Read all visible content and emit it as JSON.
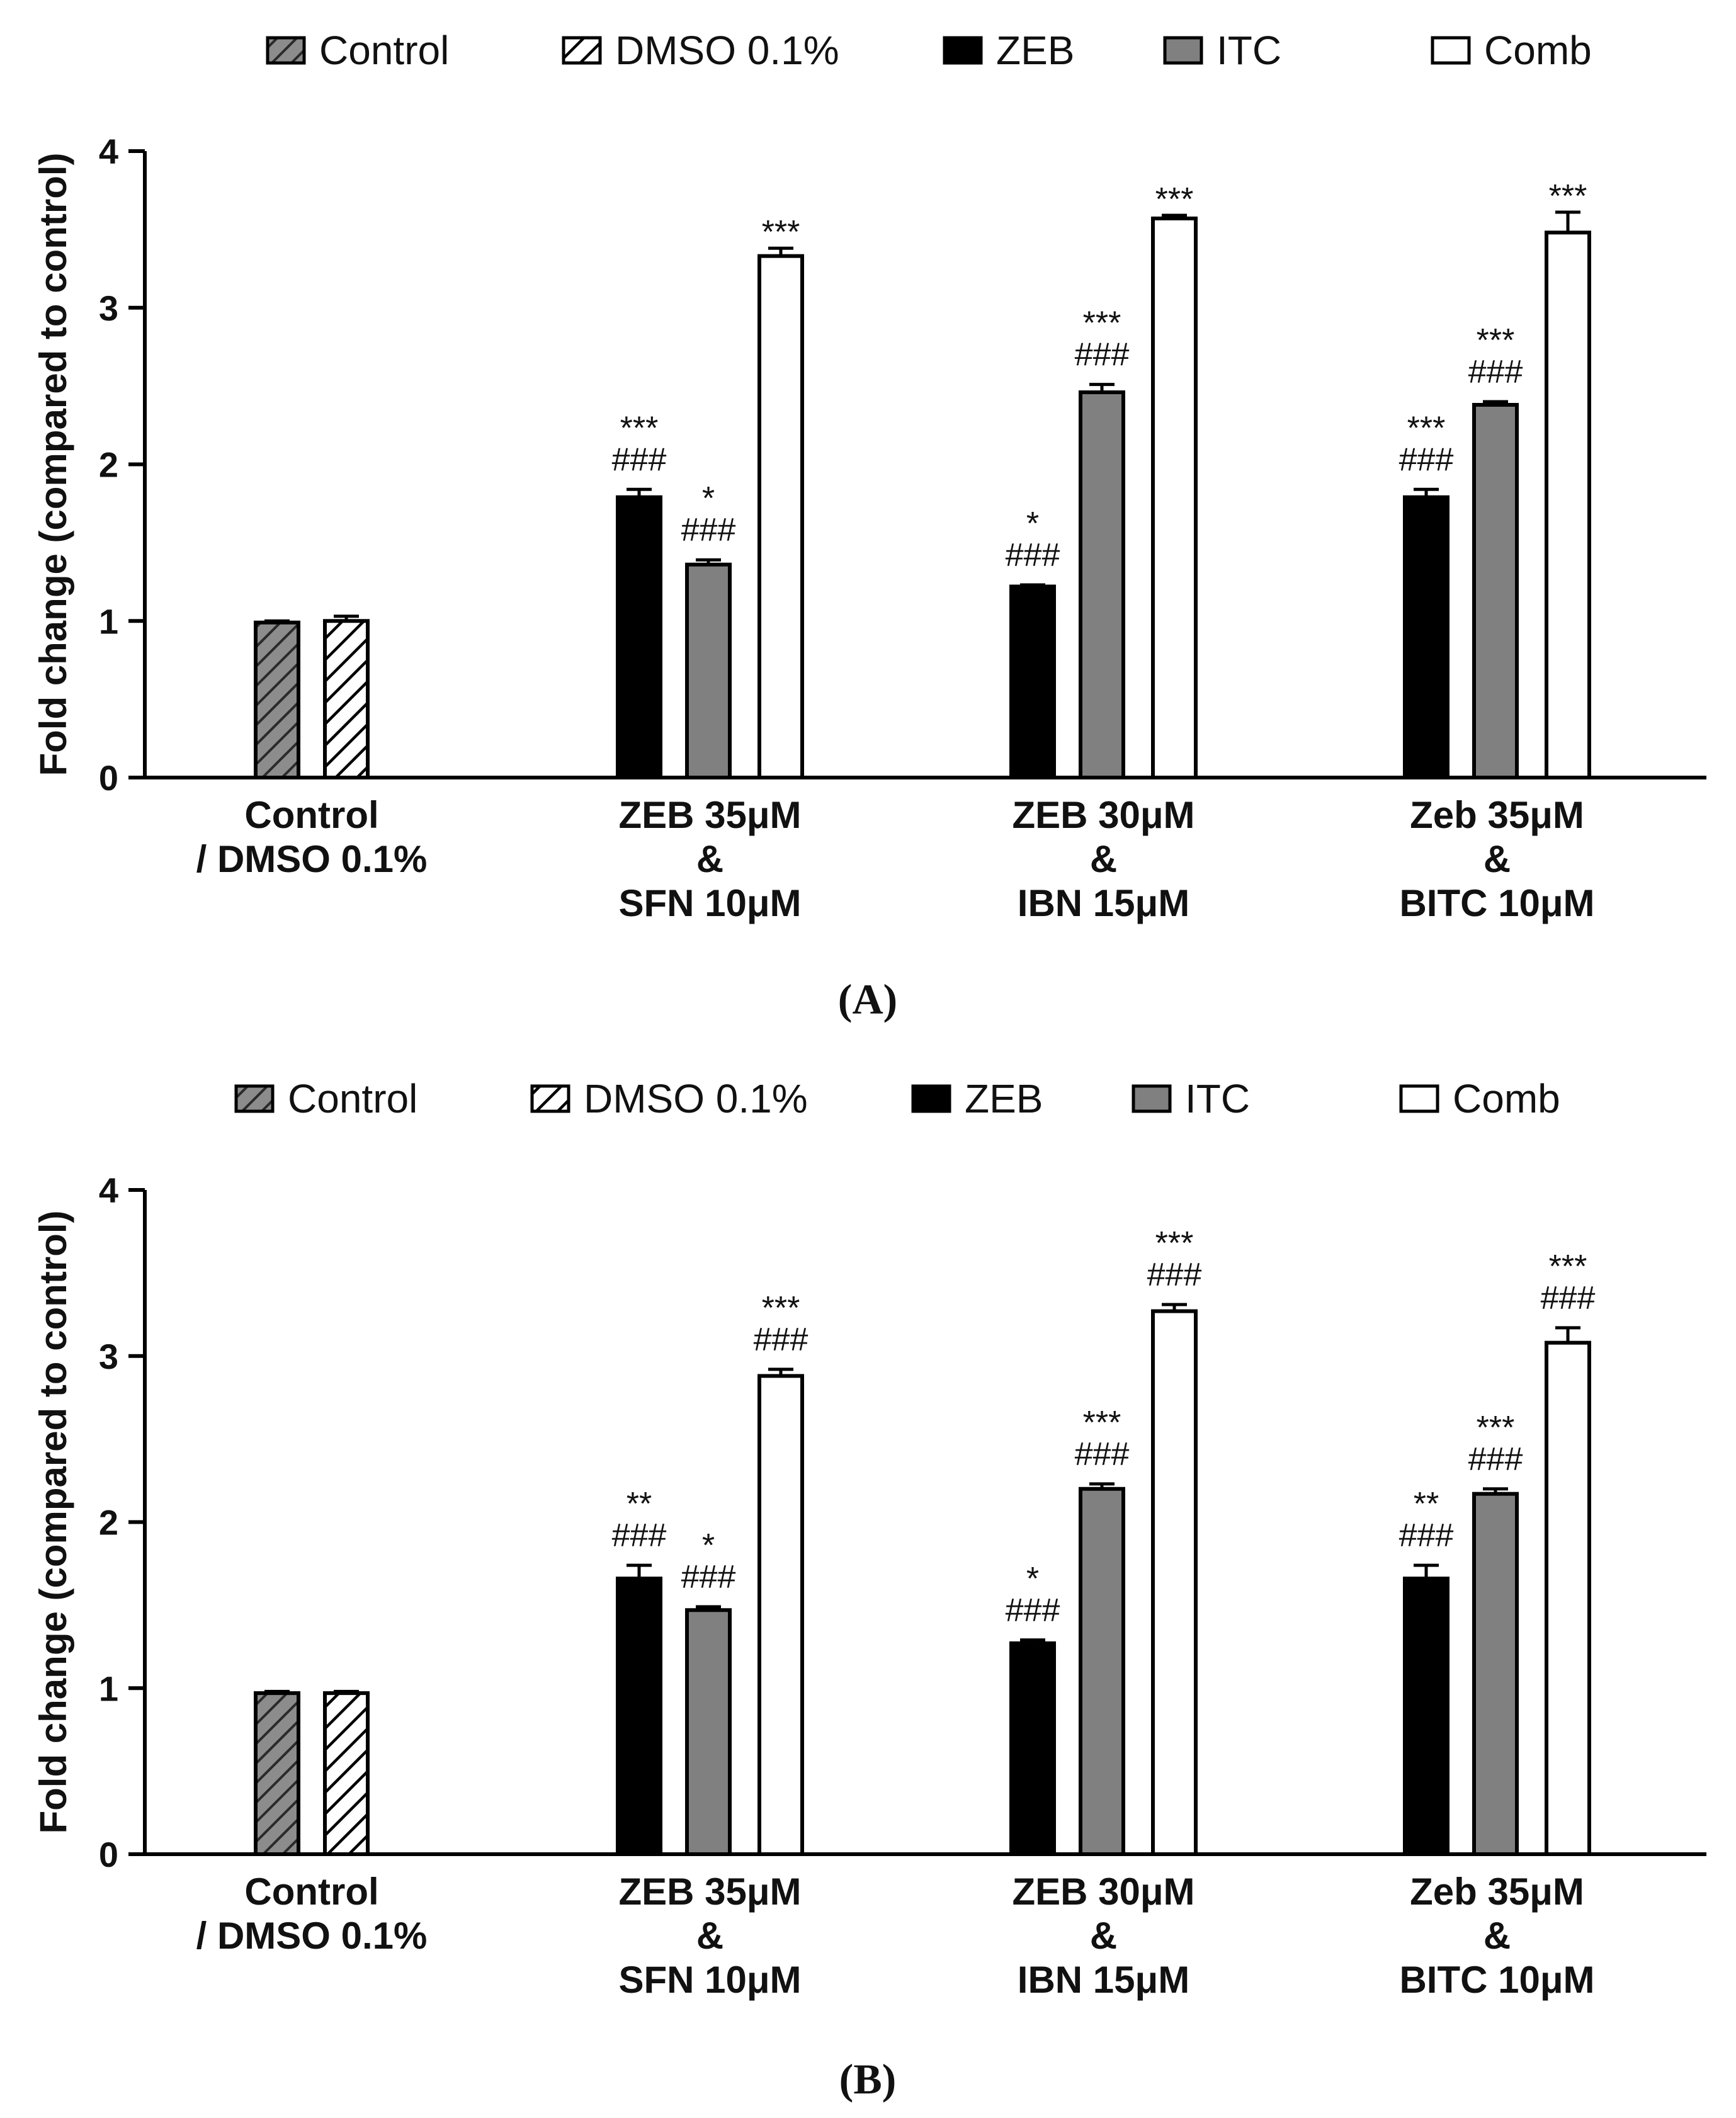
{
  "legend": [
    {
      "key": "control",
      "label": "Control",
      "fill": "hatch-gray"
    },
    {
      "key": "dmso",
      "label": "DMSO 0.1%",
      "fill": "hatch-white"
    },
    {
      "key": "zeb",
      "label": "ZEB",
      "fill": "#000000"
    },
    {
      "key": "itc",
      "label": "ITC",
      "fill": "#808080"
    },
    {
      "key": "comb",
      "label": "Comb",
      "fill": "#ffffff"
    }
  ],
  "colors": {
    "zeb": "#000000",
    "itc": "#808080",
    "comb": "#ffffff",
    "control_hatch": "#8c8c8c",
    "stroke": "#000000"
  },
  "chart_data": [
    {
      "panel": "(A)",
      "type": "bar",
      "ylabel": "Fold change (compared to control)",
      "ylim": [
        0,
        4
      ],
      "yticks": [
        "0",
        "1",
        "2",
        "3",
        "4"
      ],
      "groups": [
        {
          "label": [
            "Control",
            "/ DMSO 0.1%"
          ],
          "bars": [
            {
              "series": "control",
              "value": 0.99,
              "err": 0.01,
              "ann": []
            },
            {
              "series": "dmso",
              "value": 1.0,
              "err": 0.03,
              "ann": []
            }
          ]
        },
        {
          "label": [
            "ZEB 35μM",
            "&",
            "SFN 10μM"
          ],
          "bars": [
            {
              "series": "zeb",
              "value": 1.79,
              "err": 0.05,
              "ann": [
                "###",
                "***"
              ]
            },
            {
              "series": "itc",
              "value": 1.36,
              "err": 0.03,
              "ann": [
                "###",
                "*"
              ]
            },
            {
              "series": "comb",
              "value": 3.33,
              "err": 0.05,
              "ann": [
                "***"
              ]
            }
          ]
        },
        {
          "label": [
            "ZEB 30μM",
            "&",
            "IBN 15μM"
          ],
          "bars": [
            {
              "series": "zeb",
              "value": 1.22,
              "err": 0.01,
              "ann": [
                "###",
                "*"
              ]
            },
            {
              "series": "itc",
              "value": 2.46,
              "err": 0.05,
              "ann": [
                "###",
                "***"
              ]
            },
            {
              "series": "comb",
              "value": 3.57,
              "err": 0.02,
              "ann": [
                "***"
              ]
            }
          ]
        },
        {
          "label": [
            "Zeb 35μM",
            "&",
            "BITC 10μM"
          ],
          "bars": [
            {
              "series": "zeb",
              "value": 1.79,
              "err": 0.05,
              "ann": [
                "###",
                "***"
              ]
            },
            {
              "series": "itc",
              "value": 2.38,
              "err": 0.02,
              "ann": [
                "###",
                "***"
              ]
            },
            {
              "series": "comb",
              "value": 3.48,
              "err": 0.13,
              "ann": [
                "***"
              ]
            }
          ]
        }
      ]
    },
    {
      "panel": "(B)",
      "type": "bar",
      "ylabel": "Fold change (compared to control)",
      "ylim": [
        0,
        4
      ],
      "yticks": [
        "0",
        "1",
        "2",
        "3",
        "4"
      ],
      "groups": [
        {
          "label": [
            "Control",
            "/ DMSO 0.1%"
          ],
          "bars": [
            {
              "series": "control",
              "value": 0.97,
              "err": 0.01,
              "ann": []
            },
            {
              "series": "dmso",
              "value": 0.97,
              "err": 0.01,
              "ann": []
            }
          ]
        },
        {
          "label": [
            "ZEB 35μM",
            "&",
            "SFN 10μM"
          ],
          "bars": [
            {
              "series": "zeb",
              "value": 1.66,
              "err": 0.08,
              "ann": [
                "###",
                "**"
              ]
            },
            {
              "series": "itc",
              "value": 1.47,
              "err": 0.02,
              "ann": [
                "###",
                "*"
              ]
            },
            {
              "series": "comb",
              "value": 2.88,
              "err": 0.04,
              "ann": [
                "###",
                "***"
              ]
            }
          ]
        },
        {
          "label": [
            "ZEB 30μM",
            "&",
            "IBN 15μM"
          ],
          "bars": [
            {
              "series": "zeb",
              "value": 1.27,
              "err": 0.02,
              "ann": [
                "###",
                "*"
              ]
            },
            {
              "series": "itc",
              "value": 2.2,
              "err": 0.03,
              "ann": [
                "###",
                "***"
              ]
            },
            {
              "series": "comb",
              "value": 3.27,
              "err": 0.04,
              "ann": [
                "###",
                "***"
              ]
            }
          ]
        },
        {
          "label": [
            "Zeb 35μM",
            "&",
            "BITC 10μM"
          ],
          "bars": [
            {
              "series": "zeb",
              "value": 1.66,
              "err": 0.08,
              "ann": [
                "###",
                "**"
              ]
            },
            {
              "series": "itc",
              "value": 2.17,
              "err": 0.03,
              "ann": [
                "###",
                "***"
              ]
            },
            {
              "series": "comb",
              "value": 3.08,
              "err": 0.09,
              "ann": [
                "###",
                "***"
              ]
            }
          ]
        }
      ]
    }
  ]
}
